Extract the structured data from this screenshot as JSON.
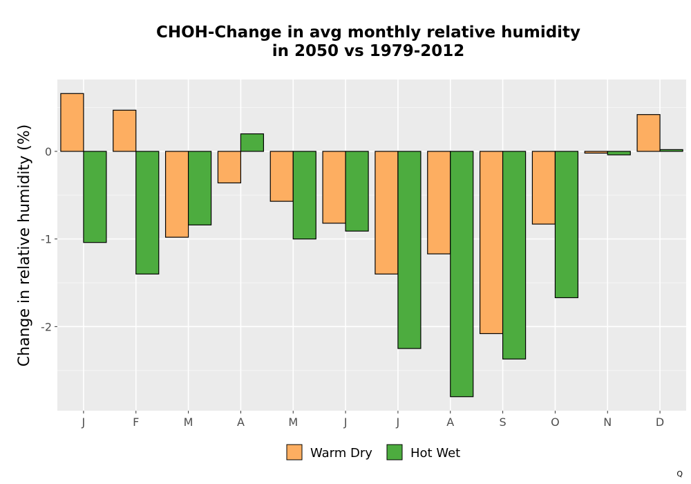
{
  "chart_data": {
    "type": "bar",
    "title_line1": "CHOH-Change in avg monthly relative humidity",
    "title_line2": "in 2050 vs 1979-2012",
    "xlabel": "",
    "ylabel": "Change in relative humidity (%)",
    "categories": [
      "J",
      "F",
      "M",
      "A",
      "M",
      "J",
      "J",
      "A",
      "S",
      "O",
      "N",
      "D"
    ],
    "series": [
      {
        "name": "Warm Dry",
        "color": "#FDAE61",
        "values": [
          0.66,
          0.47,
          -0.98,
          -0.36,
          -0.57,
          -0.82,
          -1.4,
          -1.17,
          -2.08,
          -0.83,
          -0.02,
          0.42
        ]
      },
      {
        "name": "Hot Wet",
        "color": "#4DAC3F",
        "values": [
          -1.04,
          -1.4,
          -0.84,
          0.2,
          -1.0,
          -0.91,
          -2.25,
          -2.8,
          -2.37,
          -1.67,
          -0.04,
          0.02
        ]
      }
    ],
    "ylim": [
      -2.96,
      0.82
    ],
    "yticks": [
      0,
      -1,
      -2
    ],
    "ytick_labels": [
      "0",
      "-1",
      "-2"
    ],
    "grid": true,
    "legend_position": "bottom",
    "corner_note": "Q"
  }
}
